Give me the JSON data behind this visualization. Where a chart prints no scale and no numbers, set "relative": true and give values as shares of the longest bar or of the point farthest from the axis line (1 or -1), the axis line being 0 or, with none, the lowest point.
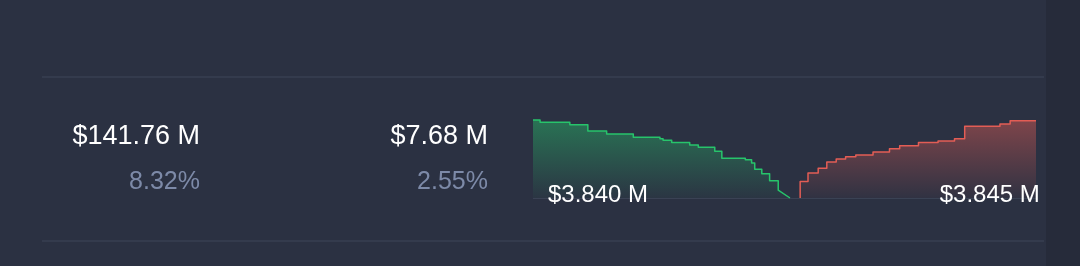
{
  "chart_data": {
    "type": "area",
    "relative": true,
    "xlim": [
      3.83917,
      3.84559
    ],
    "xticks": [
      {
        "value": 3.84,
        "label": "$3.840 M"
      },
      {
        "value": 3.845,
        "label": "$3.845 M"
      }
    ],
    "series": [
      {
        "color": "#27c46b",
        "x": [
          3.83917,
          3.83926,
          3.83926,
          3.83964,
          3.83964,
          3.83987,
          3.83987,
          3.84011,
          3.84011,
          3.84045,
          3.84045,
          3.84079,
          3.84079,
          3.84083,
          3.84083,
          3.84094,
          3.84094,
          3.84117,
          3.84117,
          3.84128,
          3.84128,
          3.84149,
          3.84149,
          3.84158,
          3.84158,
          3.84188,
          3.84188,
          3.84196,
          3.84196,
          3.842,
          3.842,
          3.84209,
          3.84209,
          3.84219,
          3.84219,
          3.8423,
          3.8423,
          3.84245
        ],
        "values": [
          1.0,
          1.0,
          0.97,
          0.97,
          0.94,
          0.94,
          0.86,
          0.86,
          0.82,
          0.82,
          0.78,
          0.78,
          0.76,
          0.76,
          0.74,
          0.74,
          0.71,
          0.71,
          0.68,
          0.68,
          0.65,
          0.65,
          0.6,
          0.6,
          0.51,
          0.51,
          0.49,
          0.49,
          0.45,
          0.45,
          0.37,
          0.37,
          0.31,
          0.31,
          0.22,
          0.22,
          0.1,
          0.0
        ]
      },
      {
        "color": "#e35d55",
        "x": [
          3.84258,
          3.84258,
          3.84268,
          3.84268,
          3.84281,
          3.84281,
          3.84292,
          3.84292,
          3.84304,
          3.84304,
          3.84316,
          3.84316,
          3.84329,
          3.84329,
          3.84351,
          3.84351,
          3.84372,
          3.84372,
          3.84385,
          3.84385,
          3.84409,
          3.84409,
          3.84434,
          3.84434,
          3.84455,
          3.84455,
          3.84468,
          3.84468,
          3.84513,
          3.84513,
          3.84526,
          3.84526,
          3.84559
        ],
        "values": [
          0.0,
          0.21,
          0.21,
          0.32,
          0.32,
          0.38,
          0.38,
          0.46,
          0.46,
          0.5,
          0.5,
          0.53,
          0.53,
          0.55,
          0.55,
          0.59,
          0.59,
          0.63,
          0.63,
          0.67,
          0.67,
          0.71,
          0.71,
          0.73,
          0.73,
          0.76,
          0.76,
          0.92,
          0.92,
          0.95,
          0.95,
          0.99,
          0.99
        ]
      }
    ],
    "annotations": [
      "$141.76 M",
      "8.32%",
      "$7.68 M",
      "2.55%"
    ]
  }
}
